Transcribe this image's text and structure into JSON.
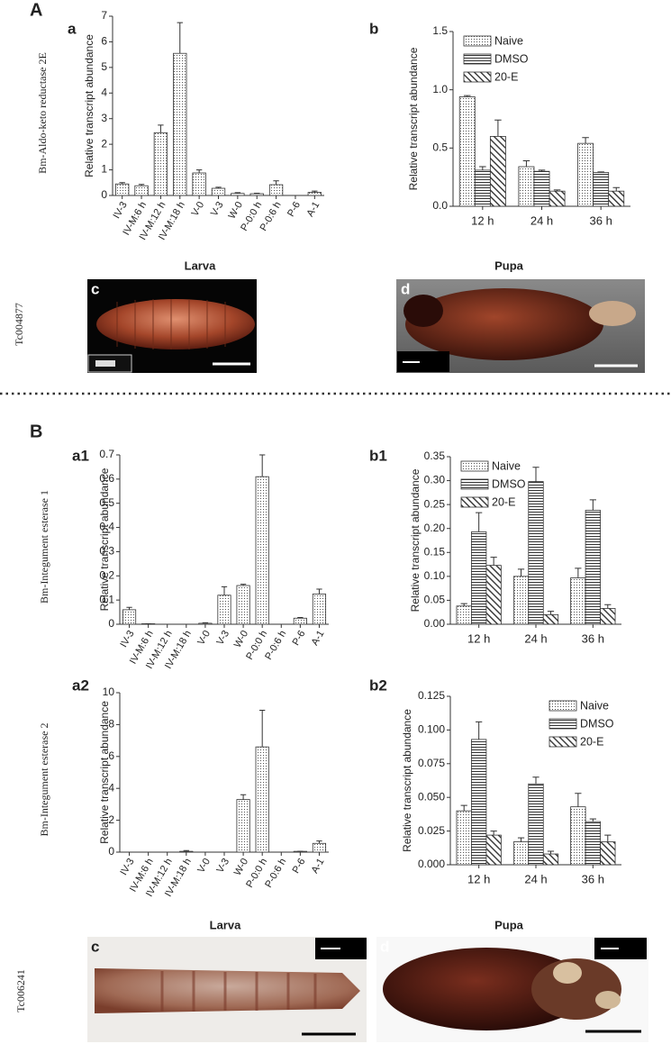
{
  "chart_data": [
    {
      "type": "bar",
      "panel": "a",
      "gene_label": "Bm-Aldo-keto reductase 2E",
      "ylabel": "Relative transcript abundance",
      "categories": [
        "IV-3",
        "IV-M:6 h",
        "IV-M:12 h",
        "IV-M:18 h",
        "V-0",
        "V-3",
        "W-0",
        "P-0:0 h",
        "P-0:6 h",
        "P-6",
        "A-1"
      ],
      "series": [
        {
          "pattern": "dots",
          "color": "#333333",
          "values": [
            0.45,
            0.38,
            2.45,
            5.55,
            0.88,
            0.28,
            0.08,
            0.07,
            0.42,
            0,
            0.12
          ],
          "errors": [
            0.05,
            0.05,
            0.3,
            1.2,
            0.12,
            0.04,
            0.03,
            0.02,
            0.15,
            0,
            0.05
          ]
        }
      ],
      "ylim": [
        0,
        7
      ],
      "yticks": [
        0,
        1,
        2,
        3,
        4,
        5,
        6,
        7
      ]
    },
    {
      "type": "bar",
      "panel": "b",
      "ylabel": "Relative transcript abundance",
      "categories": [
        "12 h",
        "24 h",
        "36 h"
      ],
      "series": [
        {
          "name": "Naive",
          "pattern": "dots",
          "color": "#333333",
          "values": [
            0.94,
            0.34,
            0.54
          ],
          "errors": [
            0.01,
            0.05,
            0.05
          ]
        },
        {
          "name": "DMSO",
          "pattern": "hlines",
          "color": "#333333",
          "values": [
            0.31,
            0.3,
            0.29
          ],
          "errors": [
            0.03,
            0.01,
            0.005
          ]
        },
        {
          "name": "20-E",
          "pattern": "diag",
          "color": "#333333",
          "values": [
            0.6,
            0.13,
            0.13
          ],
          "errors": [
            0.14,
            0.01,
            0.03
          ]
        }
      ],
      "ylim": [
        0,
        1.5
      ],
      "yticks": [
        {
          "value": 0,
          "label": "0.0"
        },
        0.5,
        {
          "value": 1,
          "label": "1.0"
        },
        1.5
      ],
      "legend": "upper left"
    },
    {
      "type": "bar",
      "panel": "a1",
      "gene_label": "Bm-Integument esterase 1",
      "ylabel": "Relative transcript abundance",
      "categories": [
        "IV-3",
        "IV-M:6 h",
        "IV-M:12 h",
        "IV-M:18 h",
        "V-0",
        "V-3",
        "W-0",
        "P-0:0 h",
        "P-0:6 h",
        "P-6",
        "A-1"
      ],
      "series": [
        {
          "pattern": "dots",
          "color": "#333333",
          "values": [
            0.06,
            0.002,
            0,
            0,
            0.004,
            0.12,
            0.16,
            0.61,
            0,
            0.025,
            0.125
          ],
          "errors": [
            0.01,
            0,
            0,
            0,
            0.002,
            0.035,
            0.005,
            0.09,
            0,
            0.003,
            0.02
          ]
        }
      ],
      "ylim": [
        0,
        0.7
      ],
      "yticks": [
        0,
        0.1,
        0.2,
        0.3,
        0.4,
        0.5,
        0.6,
        0.7
      ]
    },
    {
      "type": "bar",
      "panel": "b1",
      "ylabel": "Relative transcript abundance",
      "categories": [
        "12 h",
        "24 h",
        "36 h"
      ],
      "series": [
        {
          "name": "Naive",
          "pattern": "dots",
          "color": "#333333",
          "values": [
            0.038,
            0.1,
            0.097
          ],
          "errors": [
            0.005,
            0.015,
            0.02
          ]
        },
        {
          "name": "DMSO",
          "pattern": "hlines",
          "color": "#333333",
          "values": [
            0.193,
            0.298,
            0.238
          ],
          "errors": [
            0.04,
            0.03,
            0.022
          ]
        },
        {
          "name": "20-E",
          "pattern": "diag",
          "color": "#333333",
          "values": [
            0.123,
            0.02,
            0.033
          ],
          "errors": [
            0.017,
            0.007,
            0.008
          ]
        }
      ],
      "ylim": [
        0,
        0.35
      ],
      "yticks": [
        {
          "value": 0,
          "label": "0.00"
        },
        0.05,
        {
          "value": 0.1,
          "label": "0.10"
        },
        0.15,
        {
          "value": 0.2,
          "label": "0.20"
        },
        0.25,
        {
          "value": 0.3,
          "label": "0.30"
        },
        0.35
      ],
      "legend": "upper left"
    },
    {
      "type": "bar",
      "panel": "a2",
      "gene_label": "Bm-Integument esterase 2",
      "ylabel": "Relative transcript abundance",
      "categories": [
        "IV-3",
        "IV-M:6 h",
        "IV-M:12 h",
        "IV-M:18 h",
        "V-0",
        "V-3",
        "W-0",
        "P-0:0 h",
        "P-0:6 h",
        "P-6",
        "A-1"
      ],
      "series": [
        {
          "pattern": "dots",
          "color": "#333333",
          "values": [
            0,
            0,
            0,
            0.05,
            0,
            0,
            3.3,
            6.6,
            0,
            0.05,
            0.55
          ],
          "errors": [
            0,
            0,
            0,
            0.05,
            0,
            0,
            0.3,
            2.3,
            0,
            0,
            0.15
          ]
        }
      ],
      "ylim": [
        0,
        10
      ],
      "yticks": [
        0,
        2,
        4,
        6,
        8,
        10
      ]
    },
    {
      "type": "bar",
      "panel": "b2",
      "ylabel": "Relative transcript abundance",
      "categories": [
        "12 h",
        "24 h",
        "36 h"
      ],
      "series": [
        {
          "name": "Naive",
          "pattern": "dots",
          "color": "#333333",
          "values": [
            0.04,
            0.017,
            0.043
          ],
          "errors": [
            0.004,
            0.003,
            0.01
          ]
        },
        {
          "name": "DMSO",
          "pattern": "hlines",
          "color": "#333333",
          "values": [
            0.093,
            0.06,
            0.032
          ],
          "errors": [
            0.013,
            0.005,
            0.002
          ]
        },
        {
          "name": "20-E",
          "pattern": "diag",
          "color": "#333333",
          "values": [
            0.022,
            0.008,
            0.017
          ],
          "errors": [
            0.003,
            0.002,
            0.005
          ]
        }
      ],
      "ylim": [
        0,
        0.125
      ],
      "yticks": [
        {
          "value": 0,
          "label": "0.000"
        },
        0.025,
        {
          "value": 0.05,
          "label": "0.050"
        },
        0.075,
        {
          "value": 0.1,
          "label": "0.100"
        },
        0.125
      ],
      "legend": "upper right"
    }
  ],
  "figure": {
    "sections": [
      {
        "letter": "A",
        "stage_labels": [
          "Larva",
          "Pupa"
        ],
        "gene_id": "Tc004877",
        "photos": [
          {
            "letter": "c"
          },
          {
            "letter": "d"
          }
        ]
      },
      {
        "letter": "B",
        "stage_labels": [
          "Larva",
          "Pupa"
        ],
        "gene_id": "Tc006241",
        "photos": [
          {
            "letter": "c"
          },
          {
            "letter": "d"
          }
        ]
      }
    ]
  }
}
